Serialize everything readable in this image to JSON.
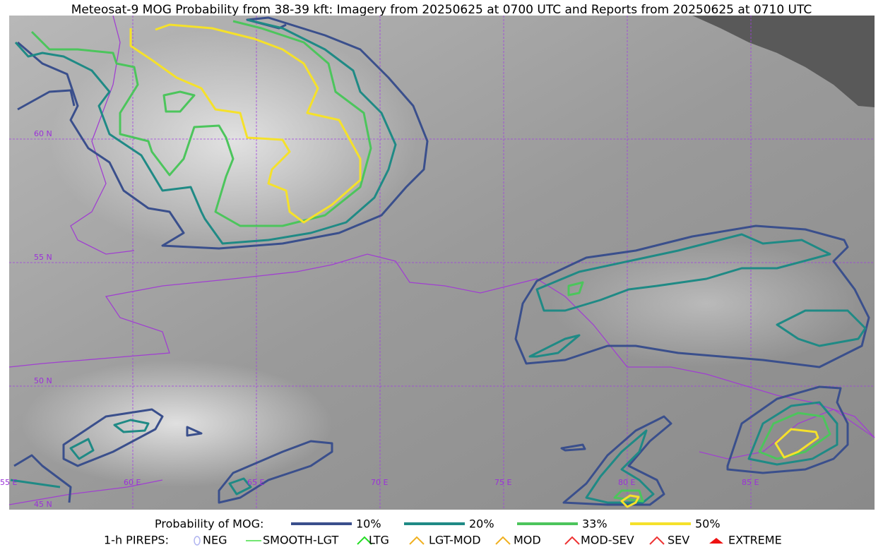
{
  "title": "Meteosat-9 MOG Probability from 38-39 kft: Imagery from 20250625 at 0700 UTC and Reports from 20250625 at 0710 UTC",
  "map": {
    "lat_labels": [
      "60 N",
      "55 N",
      "50 N",
      "45 N"
    ],
    "lon_labels": [
      "55 E",
      "60 E",
      "65 E",
      "70 E",
      "75 E",
      "80 E",
      "85 E"
    ]
  },
  "legend": {
    "probability": {
      "label": "Probability of MOG:",
      "items": [
        {
          "label": "10%",
          "color": "#3a4f8c"
        },
        {
          "label": "20%",
          "color": "#1f8a85"
        },
        {
          "label": "33%",
          "color": "#4cc55c"
        },
        {
          "label": "50%",
          "color": "#f5e12a"
        }
      ]
    },
    "pireps": {
      "label": "1-h PIREPS:",
      "items": [
        {
          "label": "NEG",
          "color": "#b0b4f0"
        },
        {
          "label": "SMOOTH-LGT",
          "color": "#44dd44"
        },
        {
          "label": "LTG",
          "color": "#22dd22"
        },
        {
          "label": "LGT-MOD",
          "color": "#f0b020"
        },
        {
          "label": "MOD",
          "color": "#f0b020"
        },
        {
          "label": "MOD-SEV",
          "color": "#ee3333"
        },
        {
          "label": "SEV",
          "color": "#ee3333"
        },
        {
          "label": "EXTREME",
          "color": "#ee1111"
        }
      ]
    }
  }
}
